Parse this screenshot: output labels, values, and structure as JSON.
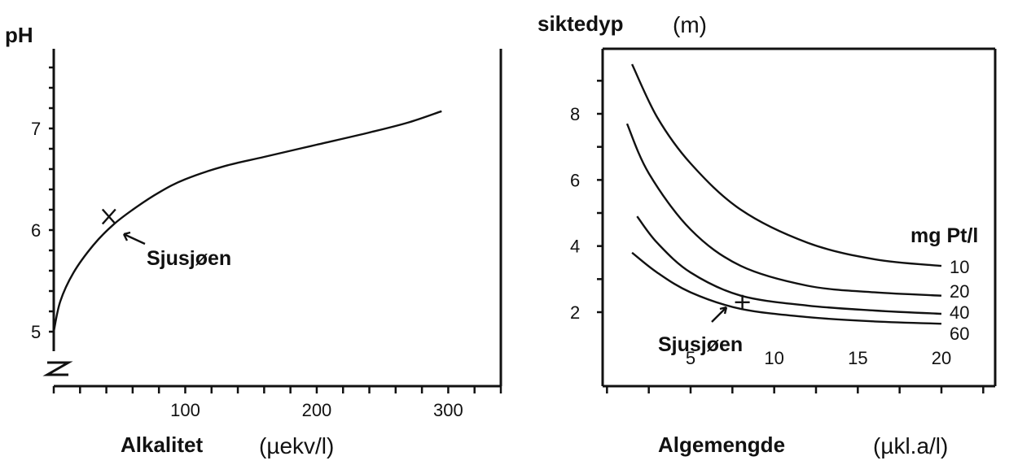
{
  "chart_data": [
    {
      "type": "line",
      "ylabel": "pH",
      "xlabel": "Alkalitet",
      "xunit": "(µekv/l)",
      "xlim": [
        0,
        340
      ],
      "ylim": [
        4.6,
        7.8
      ],
      "xticks": [
        "100",
        "200",
        "300"
      ],
      "yticks": [
        "5",
        "6",
        "7"
      ],
      "series": [
        {
          "x": [
            0,
            5,
            15,
            30,
            45,
            60,
            80,
            100,
            130,
            160,
            200,
            240,
            270,
            295
          ],
          "y": [
            5.0,
            5.3,
            5.58,
            5.85,
            6.05,
            6.2,
            6.37,
            6.5,
            6.63,
            6.72,
            6.84,
            6.96,
            7.06,
            7.17
          ]
        }
      ],
      "annotations": [
        {
          "text": "Sjusjøen",
          "x": 42,
          "y": 6.1,
          "marker": "x"
        }
      ],
      "axis_break": "Z"
    },
    {
      "type": "line",
      "ylabel": "siktedyp",
      "yunit": "(m)",
      "xlabel": "Algemengde",
      "xunit": "(µkl.a/l)",
      "xlim": [
        0,
        25
      ],
      "ylim": [
        0,
        10
      ],
      "xticks": [
        "5",
        "10",
        "15",
        "20"
      ],
      "yticks": [
        "2",
        "4",
        "6",
        "8"
      ],
      "legend_title": "mg Pt/l",
      "series": [
        {
          "name": "10",
          "x": [
            1.5,
            3,
            5,
            8,
            12,
            16,
            20
          ],
          "y": [
            9.5,
            7.9,
            6.5,
            5.1,
            4.1,
            3.6,
            3.4
          ]
        },
        {
          "name": "20",
          "x": [
            1.2,
            2.5,
            5,
            8,
            12,
            16,
            20
          ],
          "y": [
            7.7,
            6.2,
            4.5,
            3.4,
            2.8,
            2.6,
            2.5
          ]
        },
        {
          "name": "40",
          "x": [
            1.8,
            3,
            5,
            8,
            12,
            16,
            20
          ],
          "y": [
            4.9,
            4.1,
            3.2,
            2.5,
            2.2,
            2.05,
            1.95
          ]
        },
        {
          "name": "60",
          "x": [
            1.5,
            3,
            5,
            8,
            12,
            16,
            20
          ],
          "y": [
            3.8,
            3.2,
            2.6,
            2.1,
            1.85,
            1.72,
            1.65
          ]
        }
      ],
      "annotations": [
        {
          "text": "Sjusjøen",
          "x": 8,
          "y": 2.3,
          "marker": "+"
        }
      ]
    }
  ]
}
